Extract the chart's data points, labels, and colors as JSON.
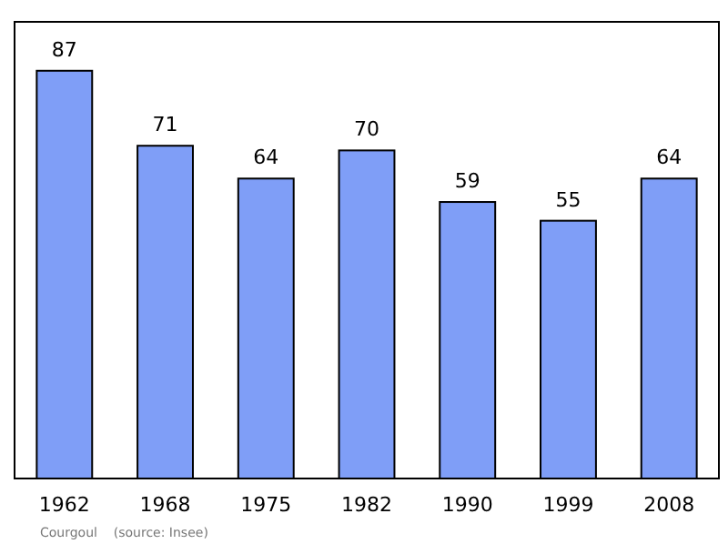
{
  "chart_data": {
    "type": "bar",
    "categories": [
      "1962",
      "1968",
      "1975",
      "1982",
      "1990",
      "1999",
      "2008"
    ],
    "values": [
      87,
      71,
      64,
      70,
      59,
      55,
      64
    ],
    "color": "#7f9ef7",
    "data_labels": true,
    "annotations": [
      "Courgoul    (source: Insee)"
    ]
  }
}
